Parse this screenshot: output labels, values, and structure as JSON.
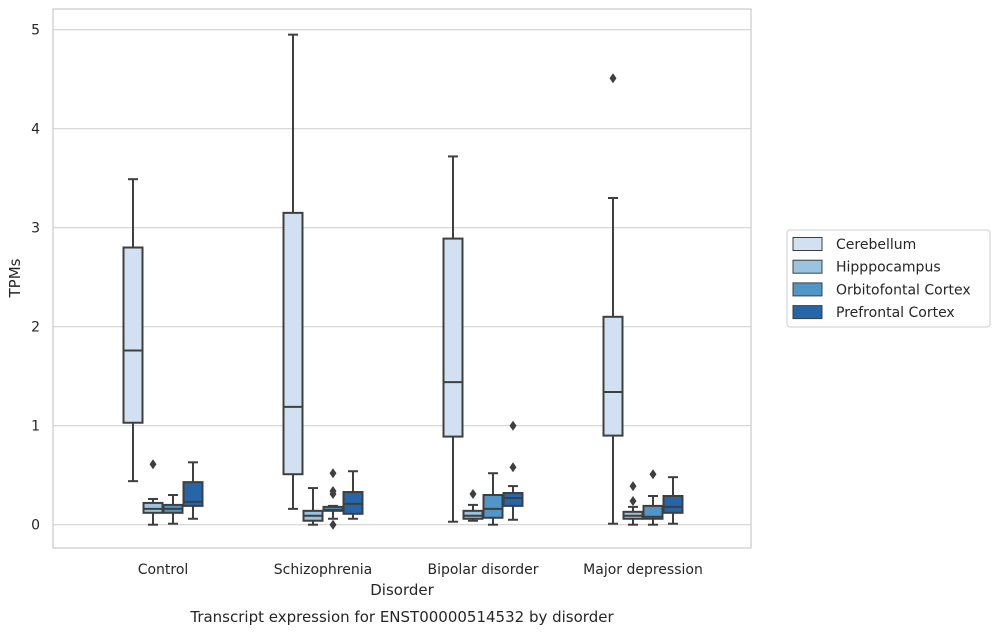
{
  "chart_data": {
    "type": "box",
    "caption": "Transcript expression for ENST00000514532 by disorder",
    "xlabel": "Disorder",
    "ylabel": "TPMs",
    "ylim": [
      -0.23,
      5.2
    ],
    "yticks": [
      0,
      1,
      2,
      3,
      4,
      5
    ],
    "grid": "horizontal",
    "legend_position": "right",
    "categories": [
      "Control",
      "Schizophrenia",
      "Bipolar disorder",
      "Major depression"
    ],
    "series": [
      {
        "name": "Cerebellum",
        "color": "#d1e1f1",
        "boxes": [
          {
            "whislo": 0.44,
            "q1": 1.03,
            "med": 1.76,
            "q3": 2.8,
            "whishi": 3.49,
            "fliers": []
          },
          {
            "whislo": 0.16,
            "q1": 0.51,
            "med": 1.19,
            "q3": 3.15,
            "whishi": 4.95,
            "fliers": []
          },
          {
            "whislo": 0.03,
            "q1": 0.89,
            "med": 1.44,
            "q3": 2.89,
            "whishi": 3.72,
            "fliers": []
          },
          {
            "whislo": 0.01,
            "q1": 0.9,
            "med": 1.34,
            "q3": 2.1,
            "whishi": 3.3,
            "fliers": [
              4.51
            ]
          }
        ]
      },
      {
        "name": "Hipppocampus",
        "color": "#9ac3df",
        "boxes": [
          {
            "whislo": 0.0,
            "q1": 0.12,
            "med": 0.16,
            "q3": 0.22,
            "whishi": 0.26,
            "fliers": [
              0.61
            ]
          },
          {
            "whislo": 0.0,
            "q1": 0.04,
            "med": 0.09,
            "q3": 0.14,
            "whishi": 0.37,
            "fliers": []
          },
          {
            "whislo": 0.04,
            "q1": 0.06,
            "med": 0.09,
            "q3": 0.14,
            "whishi": 0.2,
            "fliers": [
              0.31
            ]
          },
          {
            "whislo": 0.0,
            "q1": 0.06,
            "med": 0.09,
            "q3": 0.13,
            "whishi": 0.18,
            "fliers": [
              0.39,
              0.24
            ]
          }
        ]
      },
      {
        "name": "Orbitofontal Cortex",
        "color": "#5096c8",
        "boxes": [
          {
            "whislo": 0.01,
            "q1": 0.12,
            "med": 0.16,
            "q3": 0.2,
            "whishi": 0.3,
            "fliers": []
          },
          {
            "whislo": 0.06,
            "q1": 0.14,
            "med": 0.15,
            "q3": 0.18,
            "whishi": 0.19,
            "fliers": [
              0.52,
              0.34,
              0.31,
              0.0
            ]
          },
          {
            "whislo": 0.0,
            "q1": 0.07,
            "med": 0.16,
            "q3": 0.3,
            "whishi": 0.52,
            "fliers": []
          },
          {
            "whislo": 0.0,
            "q1": 0.06,
            "med": 0.08,
            "q3": 0.19,
            "whishi": 0.29,
            "fliers": [
              0.51
            ]
          }
        ]
      },
      {
        "name": "Prefrontal Cortex",
        "color": "#2565a8",
        "boxes": [
          {
            "whislo": 0.06,
            "q1": 0.19,
            "med": 0.23,
            "q3": 0.43,
            "whishi": 0.63,
            "fliers": []
          },
          {
            "whislo": 0.06,
            "q1": 0.11,
            "med": 0.21,
            "q3": 0.33,
            "whishi": 0.54,
            "fliers": []
          },
          {
            "whislo": 0.05,
            "q1": 0.19,
            "med": 0.27,
            "q3": 0.32,
            "whishi": 0.39,
            "fliers": [
              1.0,
              0.58
            ]
          },
          {
            "whislo": 0.01,
            "q1": 0.12,
            "med": 0.18,
            "q3": 0.29,
            "whishi": 0.48,
            "fliers": []
          }
        ]
      }
    ]
  }
}
